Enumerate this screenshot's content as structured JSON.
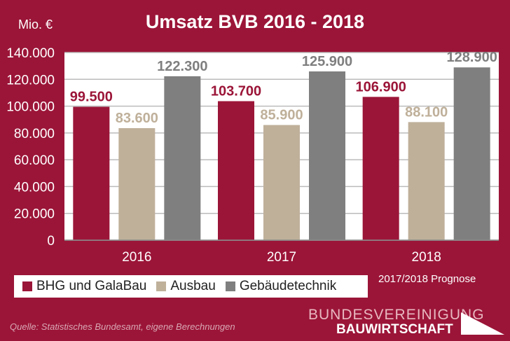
{
  "chart_data": {
    "type": "bar",
    "title": "Umsatz BVB 2016 - 2018",
    "ylabel": "Mio. €",
    "xlabel": "",
    "categories": [
      "2016",
      "2017",
      "2018"
    ],
    "series": [
      {
        "name": "BHG und GalaBau",
        "color": "#9b1538",
        "values": [
          99500,
          103700,
          106900
        ],
        "labels": [
          "99.500",
          "103.700",
          "106.900"
        ]
      },
      {
        "name": "Ausbau",
        "color": "#bfb09a",
        "values": [
          83600,
          85900,
          88100
        ],
        "labels": [
          "83.600",
          "85.900",
          "88.100"
        ]
      },
      {
        "name": "Gebäudetechnik",
        "color": "#7f7f7f",
        "values": [
          122300,
          125900,
          128900
        ],
        "labels": [
          "122.300",
          "125.900",
          "128.900"
        ]
      }
    ],
    "ylim": [
      0,
      140000
    ],
    "yticks": [
      0,
      20000,
      40000,
      60000,
      80000,
      100000,
      120000,
      140000
    ],
    "ytick_labels": [
      "0",
      "20.000",
      "40.000",
      "60.000",
      "80.000",
      "100.000",
      "120.000",
      "140.000"
    ],
    "grid": true,
    "legend": "bottom-left",
    "annotation": "2017/2018 Prognose"
  },
  "source": "Quelle: Statistisches Bundesamt, eigene Berechnungen",
  "logo": {
    "line1": "BUNDESVEREINIGUNG",
    "line2": "BAUWIRTSCHAFT"
  }
}
